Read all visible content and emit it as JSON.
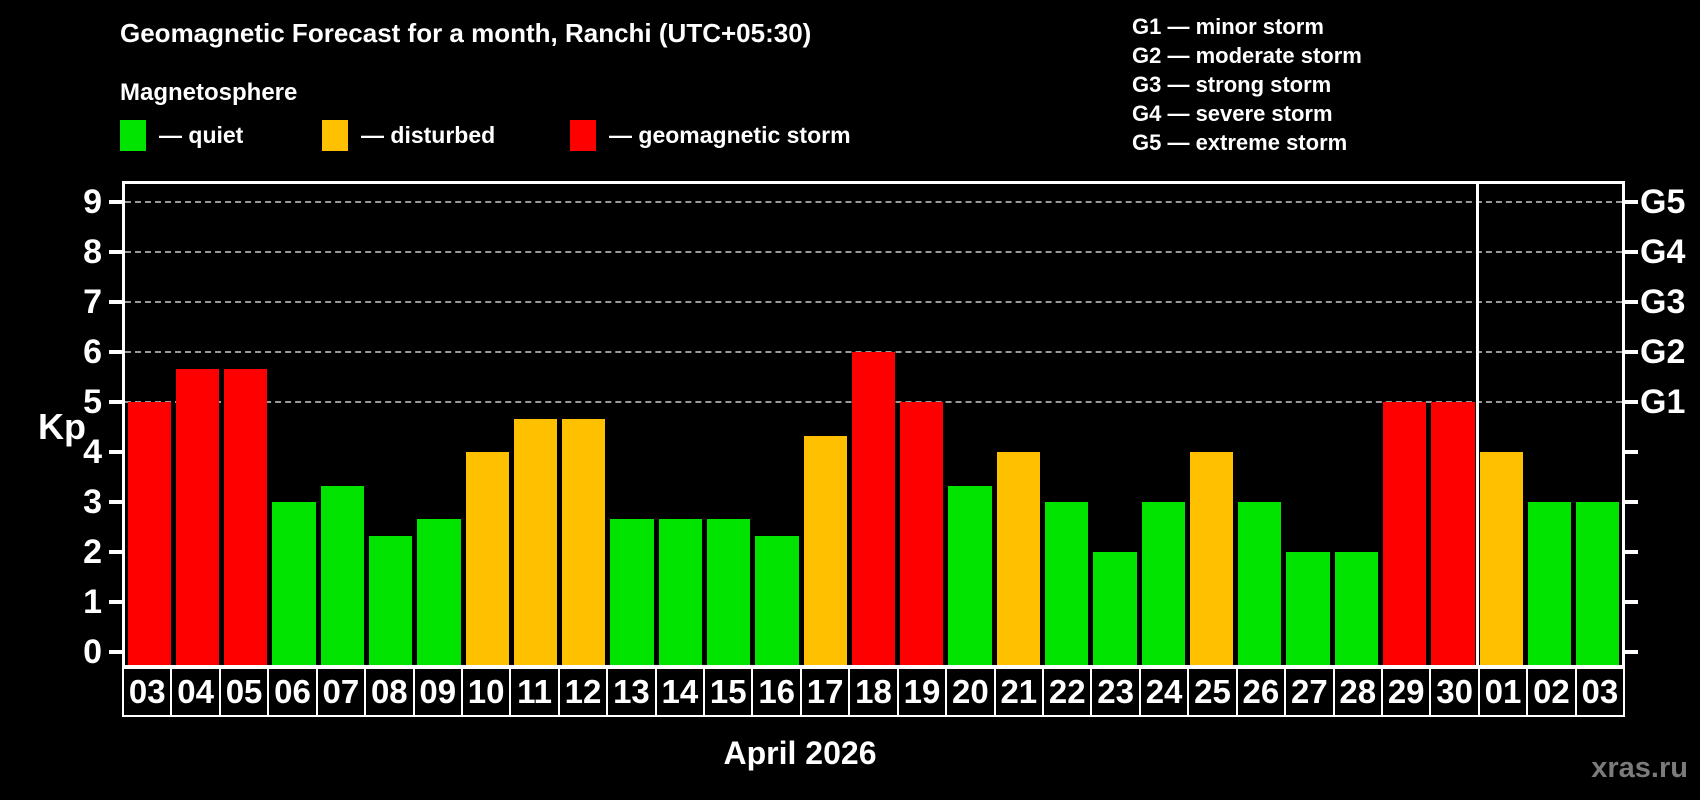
{
  "title": "Geomagnetic Forecast for a month, Ranchi (UTC+05:30)",
  "subtitle": "Magnetosphere",
  "legend": {
    "items": [
      {
        "key": "quiet",
        "label": "— quiet"
      },
      {
        "key": "disturbed",
        "label": "— disturbed"
      },
      {
        "key": "storm",
        "label": "— geomagnetic storm"
      }
    ]
  },
  "g_legend": [
    "G1 — minor storm",
    "G2 — moderate storm",
    "G3 — strong storm",
    "G4 — severe storm",
    "G5 — extreme storm"
  ],
  "colors": {
    "quiet": "#00e400",
    "disturbed": "#ffc000",
    "storm": "#ff0000",
    "grid": "#9a9a9a",
    "axis": "#ffffff",
    "watermark": "#7b7b7b",
    "background": "#000000"
  },
  "watermark": "xras.ru",
  "chart_data": {
    "type": "bar",
    "title": "Geomagnetic Forecast for a month, Ranchi (UTC+05:30)",
    "ylabel": "Kp",
    "x_title": "April 2026",
    "ylim": [
      0,
      9
    ],
    "grid": "horizontal dashed lines at Kp 5,6,7,8,9",
    "legend_position": "top",
    "categories": [
      "03",
      "04",
      "05",
      "06",
      "07",
      "08",
      "09",
      "10",
      "11",
      "12",
      "13",
      "14",
      "15",
      "16",
      "17",
      "18",
      "19",
      "20",
      "21",
      "22",
      "23",
      "24",
      "25",
      "26",
      "27",
      "28",
      "29",
      "30",
      "01",
      "02",
      "03"
    ],
    "values": [
      5,
      5.67,
      5.67,
      3,
      3.33,
      2.33,
      2.67,
      4,
      4.67,
      4.67,
      2.67,
      2.67,
      2.67,
      2.33,
      4.33,
      6,
      5,
      3.33,
      4,
      3,
      2,
      3,
      4,
      3,
      2,
      2,
      5,
      5,
      4,
      3,
      3
    ],
    "statuses": [
      "storm",
      "storm",
      "storm",
      "quiet",
      "quiet",
      "quiet",
      "quiet",
      "disturbed",
      "disturbed",
      "disturbed",
      "quiet",
      "quiet",
      "quiet",
      "quiet",
      "disturbed",
      "storm",
      "storm",
      "quiet",
      "disturbed",
      "quiet",
      "quiet",
      "quiet",
      "disturbed",
      "quiet",
      "quiet",
      "quiet",
      "storm",
      "storm",
      "disturbed",
      "quiet",
      "quiet"
    ],
    "left_ticks": [
      "0",
      "1",
      "2",
      "3",
      "4",
      "5",
      "6",
      "7",
      "8",
      "9"
    ],
    "right_axis": [
      {
        "kp": 5,
        "label": "G1"
      },
      {
        "kp": 6,
        "label": "G2"
      },
      {
        "kp": 7,
        "label": "G3"
      },
      {
        "kp": 8,
        "label": "G4"
      },
      {
        "kp": 9,
        "label": "G5"
      }
    ],
    "gridlines_kp": [
      5,
      6,
      7,
      8,
      9
    ],
    "april_days": 28
  }
}
